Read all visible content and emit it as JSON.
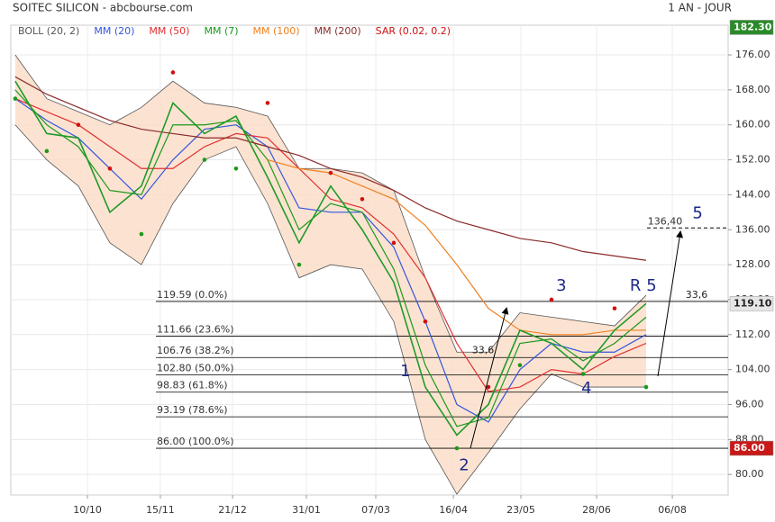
{
  "chart_data": {
    "type": "line",
    "title": "SOITEC SILICON - abcbourse.com",
    "period": "1 AN - JOUR",
    "x": [
      0,
      1,
      2,
      3,
      4,
      5,
      6,
      7,
      8,
      9,
      10,
      11,
      12,
      13,
      14,
      15,
      16,
      17,
      18,
      19,
      20
    ],
    "xlim": [
      -0.14,
      22.6
    ],
    "xticks": [
      {
        "value": 2.29,
        "label": "10/10"
      },
      {
        "value": 4.6,
        "label": "15/11"
      },
      {
        "value": 6.89,
        "label": "21/12"
      },
      {
        "value": 9.23,
        "label": "31/01"
      },
      {
        "value": 11.43,
        "label": "07/03"
      },
      {
        "value": 13.89,
        "label": "16/04"
      },
      {
        "value": 16.03,
        "label": "23/05"
      },
      {
        "value": 18.43,
        "label": "28/06"
      },
      {
        "value": 20.83,
        "label": "06/08"
      }
    ],
    "ylim": [
      75.3,
      182.8
    ],
    "yticks": [
      {
        "value": 80,
        "label": "80.00"
      },
      {
        "value": 88,
        "label": "88.00"
      },
      {
        "value": 96,
        "label": "96.00"
      },
      {
        "value": 104,
        "label": "104.00"
      },
      {
        "value": 112,
        "label": "112.00"
      },
      {
        "value": 120,
        "label": "120.00"
      },
      {
        "value": 128,
        "label": "128.00"
      },
      {
        "value": 136,
        "label": "136.00"
      },
      {
        "value": 144,
        "label": "144.00"
      },
      {
        "value": 152,
        "label": "152.00"
      },
      {
        "value": 160,
        "label": "160.00"
      },
      {
        "value": 168,
        "label": "168.00"
      },
      {
        "value": 176,
        "label": "176.00"
      }
    ],
    "grid": true,
    "close": {
      "color": "#1f9a2a",
      "values": [
        170,
        158,
        157,
        140,
        146,
        165,
        158,
        162,
        148,
        133,
        146,
        136,
        124,
        100,
        89,
        96,
        113,
        110,
        104,
        113,
        119.1
      ]
    },
    "bollinger": {
      "name": "BOLL (20, 2)",
      "color": "#555555",
      "fill": "#fbdcc6",
      "upper": [
        176,
        166,
        163,
        160,
        164,
        170,
        165,
        164,
        162,
        150,
        150,
        149,
        145,
        125,
        108,
        108,
        117,
        116,
        115,
        114,
        121
      ],
      "lower": [
        160,
        152,
        146,
        133,
        128,
        142,
        152,
        155,
        142,
        125,
        128,
        127,
        115,
        88,
        75.5,
        85,
        95,
        103,
        100,
        100,
        100
      ]
    },
    "series": [
      {
        "name": "MM (20)",
        "color": "#3355dd",
        "values": [
          166,
          161,
          157,
          150,
          143,
          152,
          159,
          160,
          155,
          141,
          140,
          140,
          132,
          115,
          96,
          92,
          104,
          110,
          108,
          108,
          112
        ]
      },
      {
        "name": "MM (50)",
        "color": "#e03030",
        "values": [
          166,
          163,
          160,
          155,
          150,
          150,
          155,
          158,
          157,
          150,
          143,
          141,
          135,
          125,
          110,
          99,
          100,
          104,
          103,
          107,
          110
        ]
      },
      {
        "name": "MM (7)",
        "color": "#1a9a1a",
        "values": [
          168,
          160,
          155,
          145,
          144,
          160,
          160,
          161,
          152,
          136,
          142,
          140,
          127,
          105,
          91,
          93,
          110,
          111,
          106,
          110,
          116
        ]
      },
      {
        "name": "MM (100)",
        "color": "#f08020",
        "values": [
          null,
          null,
          null,
          null,
          null,
          null,
          null,
          null,
          152,
          150,
          149,
          146,
          143,
          137,
          128,
          118,
          113,
          112,
          112,
          113,
          113
        ]
      },
      {
        "name": "MM (200)",
        "color": "#8b2a2a",
        "values": [
          171,
          167,
          164,
          161,
          159,
          158,
          157,
          157,
          155,
          153,
          150,
          148,
          145,
          141,
          138,
          136,
          134,
          133,
          131,
          130,
          129
        ]
      }
    ],
    "sar": {
      "name": "SAR (0.02, 0.2)",
      "color": "#d01010",
      "below_color": "#1a9a1a",
      "values": [
        166,
        154,
        160,
        150,
        135,
        172,
        152,
        150,
        165,
        128,
        149,
        143,
        133,
        115,
        86,
        100,
        105,
        120,
        103,
        118,
        100
      ]
    },
    "fib": [
      {
        "value": 119.59,
        "label": "119.59  (0.0%)"
      },
      {
        "value": 111.66,
        "label": "111.66  (23.6%)"
      },
      {
        "value": 106.76,
        "label": "106.76  (38.2%)"
      },
      {
        "value": 102.8,
        "label": "102.80  (50.0%)"
      },
      {
        "value": 98.83,
        "label": "98.83  (61.8%)"
      },
      {
        "value": 93.19,
        "label": "93.19  (78.6%)"
      },
      {
        "value": 86,
        "label": "86.00  (100.0%)"
      }
    ],
    "target": {
      "value": 136.4,
      "label": "136,40"
    },
    "annotations": [
      {
        "text": "1",
        "x": 12.37,
        "y": 103.5
      },
      {
        "text": "2",
        "x": 14.23,
        "y": 82.0
      },
      {
        "text": "3",
        "x": 17.31,
        "y": 123.1
      },
      {
        "text": "4",
        "x": 18.11,
        "y": 99.6
      },
      {
        "text": "R",
        "x": 19.66,
        "y": 123.1
      },
      {
        "text": "5",
        "x": 20.17,
        "y": 123.1
      },
      {
        "text": "5",
        "x": 21.63,
        "y": 139.7
      },
      {
        "text": "33,6",
        "x": 14.83,
        "y": 108.4
      },
      {
        "text": "33,6",
        "x": 21.6,
        "y": 121.0
      }
    ],
    "price_tags": [
      {
        "value": 182.3,
        "label": "182.30",
        "color": "#2a8a2a"
      },
      {
        "value": 119.1,
        "label": "119.10",
        "color": "#e6e6e6"
      },
      {
        "value": 86,
        "label": "86.00",
        "color": "#c81818"
      }
    ]
  }
}
